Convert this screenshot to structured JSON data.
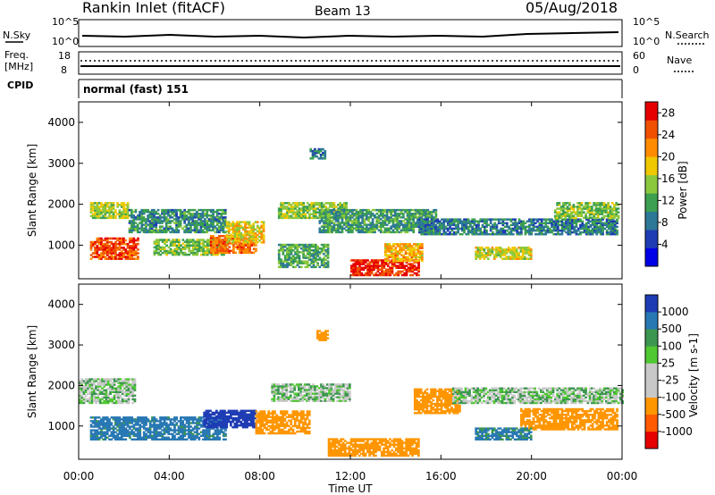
{
  "header": {
    "station": "Rankin Inlet (fitACF)",
    "beam": "Beam 13",
    "date": "05/Aug/2018"
  },
  "params": {
    "nsky_label": "N.Sky",
    "nsearch_label": "N.Search",
    "freq_label": "Freq.",
    "freq_unit": "[MHz]",
    "nave_label": "Nave",
    "cpid_label": "CPID",
    "cpid_value": "normal (fast) 151",
    "noise_ticks": [
      "10^5",
      "10^0"
    ],
    "freq_ticks": [
      "18",
      "8"
    ],
    "nave_ticks": [
      "60",
      "0"
    ]
  },
  "xaxis": {
    "label": "Time UT",
    "ticks": [
      "00:00",
      "04:00",
      "08:00",
      "12:00",
      "16:00",
      "20:00",
      "00:00"
    ]
  },
  "colors": {
    "power": [
      "#0000e6",
      "#1e3cb4",
      "#2d7896",
      "#3ca050",
      "#8cc83c",
      "#f0c800",
      "#ff8c00",
      "#f05000",
      "#e60000"
    ],
    "velocity": [
      "#e60000",
      "#ff5a00",
      "#ff9600",
      "#c8c8c8",
      "#c8c8c8",
      "#50c832",
      "#3c9650",
      "#2878b4",
      "#1e3cb4"
    ]
  },
  "chart_data": [
    {
      "type": "heatmap",
      "title": "Power",
      "ylabel": "Slant Range [km]",
      "xlabel": "Time UT",
      "xlim": [
        0,
        24
      ],
      "ylim": [
        180,
        4500
      ],
      "yticks": [
        "1000",
        "2000",
        "3000",
        "4000"
      ],
      "colorbar": {
        "label": "Power [dB]",
        "ticks": [
          "4",
          "8",
          "12",
          "16",
          "20",
          "24",
          "28"
        ],
        "range": [
          0,
          30
        ]
      },
      "regions": [
        {
          "t": [
            0.5,
            2.2
          ],
          "r": [
            1650,
            2050
          ],
          "value": 16
        },
        {
          "t": [
            2.2,
            6.5
          ],
          "r": [
            1300,
            1850
          ],
          "value": 10
        },
        {
          "t": [
            0.5,
            2.6
          ],
          "r": [
            650,
            1150
          ],
          "value": 25
        },
        {
          "t": [
            3.3,
            6.5
          ],
          "r": [
            750,
            1150
          ],
          "value": 14
        },
        {
          "t": [
            5.8,
            7.8
          ],
          "r": [
            800,
            1250
          ],
          "value": 24
        },
        {
          "t": [
            6.5,
            8.2
          ],
          "r": [
            1050,
            1550
          ],
          "value": 18
        },
        {
          "t": [
            8.8,
            11.8
          ],
          "r": [
            1650,
            2050
          ],
          "value": 15
        },
        {
          "t": [
            10.6,
            15.8
          ],
          "r": [
            1300,
            1850
          ],
          "value": 11
        },
        {
          "t": [
            12.0,
            15.0
          ],
          "r": [
            250,
            650
          ],
          "value": 27
        },
        {
          "t": [
            13.5,
            15.2
          ],
          "r": [
            600,
            1050
          ],
          "value": 20
        },
        {
          "t": [
            15.0,
            23.8
          ],
          "r": [
            1250,
            1650
          ],
          "value": 9
        },
        {
          "t": [
            21.0,
            23.8
          ],
          "r": [
            1650,
            2050
          ],
          "value": 14
        },
        {
          "t": [
            17.5,
            20.0
          ],
          "r": [
            650,
            950
          ],
          "value": 17
        },
        {
          "t": [
            8.8,
            11.0
          ],
          "r": [
            450,
            1000
          ],
          "value": 12
        },
        {
          "t": [
            10.2,
            10.9
          ],
          "r": [
            3100,
            3350
          ],
          "value": 9
        }
      ]
    },
    {
      "type": "heatmap",
      "title": "Velocity",
      "ylabel": "Slant Range [km]",
      "xlabel": "Time UT",
      "xlim": [
        0,
        24
      ],
      "ylim": [
        180,
        4500
      ],
      "yticks": [
        "1000",
        "2000",
        "3000",
        "4000"
      ],
      "colorbar": {
        "label": "Velocity [m s-1]",
        "ticks": [
          "1000",
          "500",
          "100",
          "25",
          "-25",
          "-100",
          "-500",
          "-1000"
        ]
      },
      "regions": [
        {
          "t": [
            0.0,
            2.5
          ],
          "r": [
            1550,
            2150
          ],
          "value": 0
        },
        {
          "t": [
            0.5,
            6.5
          ],
          "r": [
            650,
            1200
          ],
          "value": 150
        },
        {
          "t": [
            5.5,
            7.8
          ],
          "r": [
            950,
            1400
          ],
          "value": 600
        },
        {
          "t": [
            7.8,
            10.2
          ],
          "r": [
            800,
            1350
          ],
          "value": -300
        },
        {
          "t": [
            8.5,
            12.0
          ],
          "r": [
            1600,
            2050
          ],
          "value": 0
        },
        {
          "t": [
            11.0,
            15.0
          ],
          "r": [
            250,
            700
          ],
          "value": -300
        },
        {
          "t": [
            14.8,
            16.8
          ],
          "r": [
            1300,
            1900
          ],
          "value": -300
        },
        {
          "t": [
            16.5,
            24.0
          ],
          "r": [
            1550,
            1950
          ],
          "value": 0
        },
        {
          "t": [
            19.5,
            23.8
          ],
          "r": [
            900,
            1400
          ],
          "value": -200
        },
        {
          "t": [
            17.5,
            20.0
          ],
          "r": [
            650,
            950
          ],
          "value": 120
        },
        {
          "t": [
            10.5,
            11.0
          ],
          "r": [
            3100,
            3350
          ],
          "value": -300
        }
      ]
    }
  ]
}
